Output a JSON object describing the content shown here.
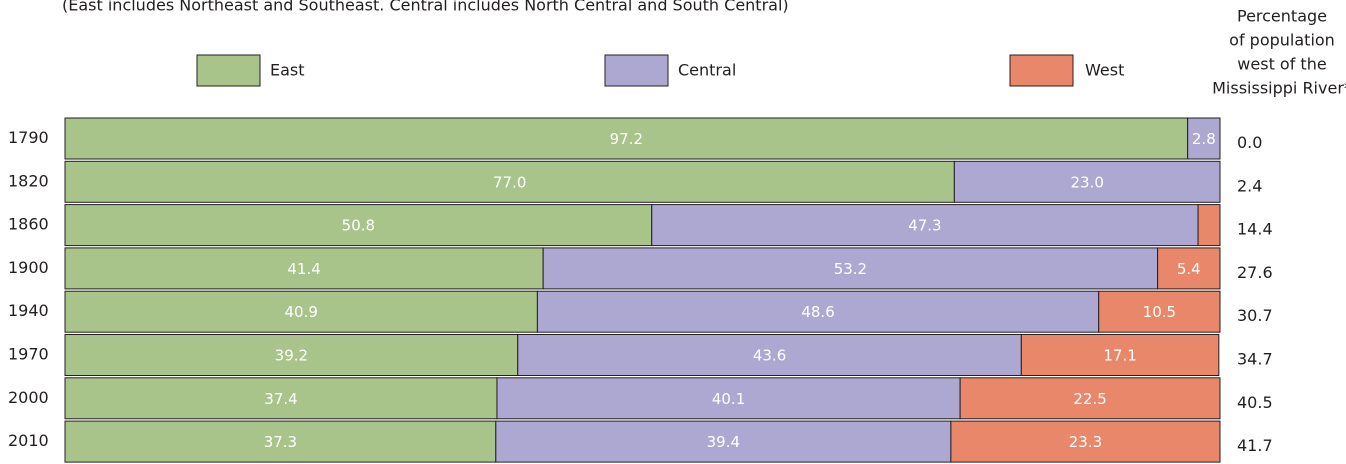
{
  "chart_data": {
    "type": "stacked-bar",
    "subtitle": "(East includes Northeast and Southeast. Central includes North Central and South Central)",
    "categories": [
      "1790",
      "1820",
      "1860",
      "1900",
      "1940",
      "1970",
      "2000",
      "2010"
    ],
    "xlim": [
      0,
      100
    ],
    "series": [
      {
        "name": "East",
        "color": "#a9c48b",
        "values": [
          97.2,
          77.0,
          50.8,
          41.4,
          40.9,
          39.2,
          37.4,
          37.3
        ],
        "value_labels": [
          "97.2",
          "77.0",
          "50.8",
          "41.4",
          "40.9",
          "39.2",
          "37.4",
          "37.3"
        ]
      },
      {
        "name": "Central",
        "color": "#aca8d2",
        "values": [
          2.8,
          23.0,
          47.3,
          53.2,
          48.6,
          43.6,
          40.1,
          39.4
        ],
        "value_labels": [
          "2.8",
          "23.0",
          "47.3",
          "53.2",
          "48.6",
          "43.6",
          "40.1",
          "39.4"
        ]
      },
      {
        "name": "West",
        "color": "#e9876b",
        "values": [
          0,
          0,
          1.9,
          5.4,
          10.5,
          17.1,
          22.5,
          23.3
        ],
        "value_labels": [
          null,
          null,
          null,
          "5.4",
          "10.5",
          "17.1",
          "22.5",
          "23.3"
        ]
      }
    ],
    "west_of_mississippi": {
      "title_lines": [
        "Percentage",
        "of population",
        "west of the",
        "Mississippi River*"
      ],
      "values": [
        0.0,
        2.4,
        14.4,
        27.6,
        30.7,
        34.7,
        40.5,
        41.7
      ],
      "value_labels": [
        "0.0",
        "2.4",
        "14.4",
        "27.6",
        "30.7",
        "34.7",
        "40.5",
        "41.7"
      ]
    }
  }
}
